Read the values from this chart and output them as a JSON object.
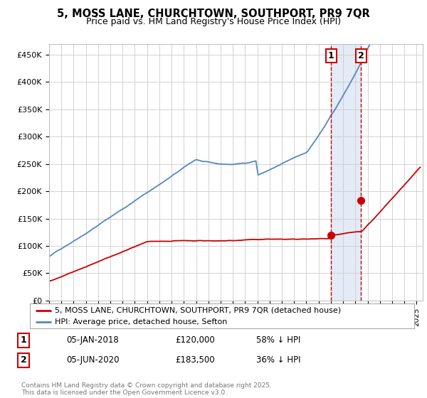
{
  "title_line1": "5, MOSS LANE, CHURCHTOWN, SOUTHPORT, PR9 7QR",
  "title_line2": "Price paid vs. HM Land Registry's House Price Index (HPI)",
  "ylabel_ticks": [
    "£0",
    "£50K",
    "£100K",
    "£150K",
    "£200K",
    "£250K",
    "£300K",
    "£350K",
    "£400K",
    "£450K"
  ],
  "ytick_values": [
    0,
    50000,
    100000,
    150000,
    200000,
    250000,
    300000,
    350000,
    400000,
    450000
  ],
  "ylim": [
    0,
    470000
  ],
  "xlim_start": 1995.0,
  "xlim_end": 2025.5,
  "hpi_color": "#5588bb",
  "price_color": "#cc0000",
  "marker1_date": 2018.03,
  "marker2_date": 2020.45,
  "marker1_price": 120000,
  "marker2_price": 183500,
  "legend_line1": "5, MOSS LANE, CHURCHTOWN, SOUTHPORT, PR9 7QR (detached house)",
  "legend_line2": "HPI: Average price, detached house, Sefton",
  "annotation1_date": "05-JAN-2018",
  "annotation1_price": "£120,000",
  "annotation1_hpi": "58% ↓ HPI",
  "annotation2_date": "05-JUN-2020",
  "annotation2_price": "£183,500",
  "annotation2_hpi": "36% ↓ HPI",
  "footer": "Contains HM Land Registry data © Crown copyright and database right 2025.\nThis data is licensed under the Open Government Licence v3.0.",
  "background_color": "#ffffff",
  "grid_color": "#cccccc",
  "shade_color": "#c8d8ee"
}
